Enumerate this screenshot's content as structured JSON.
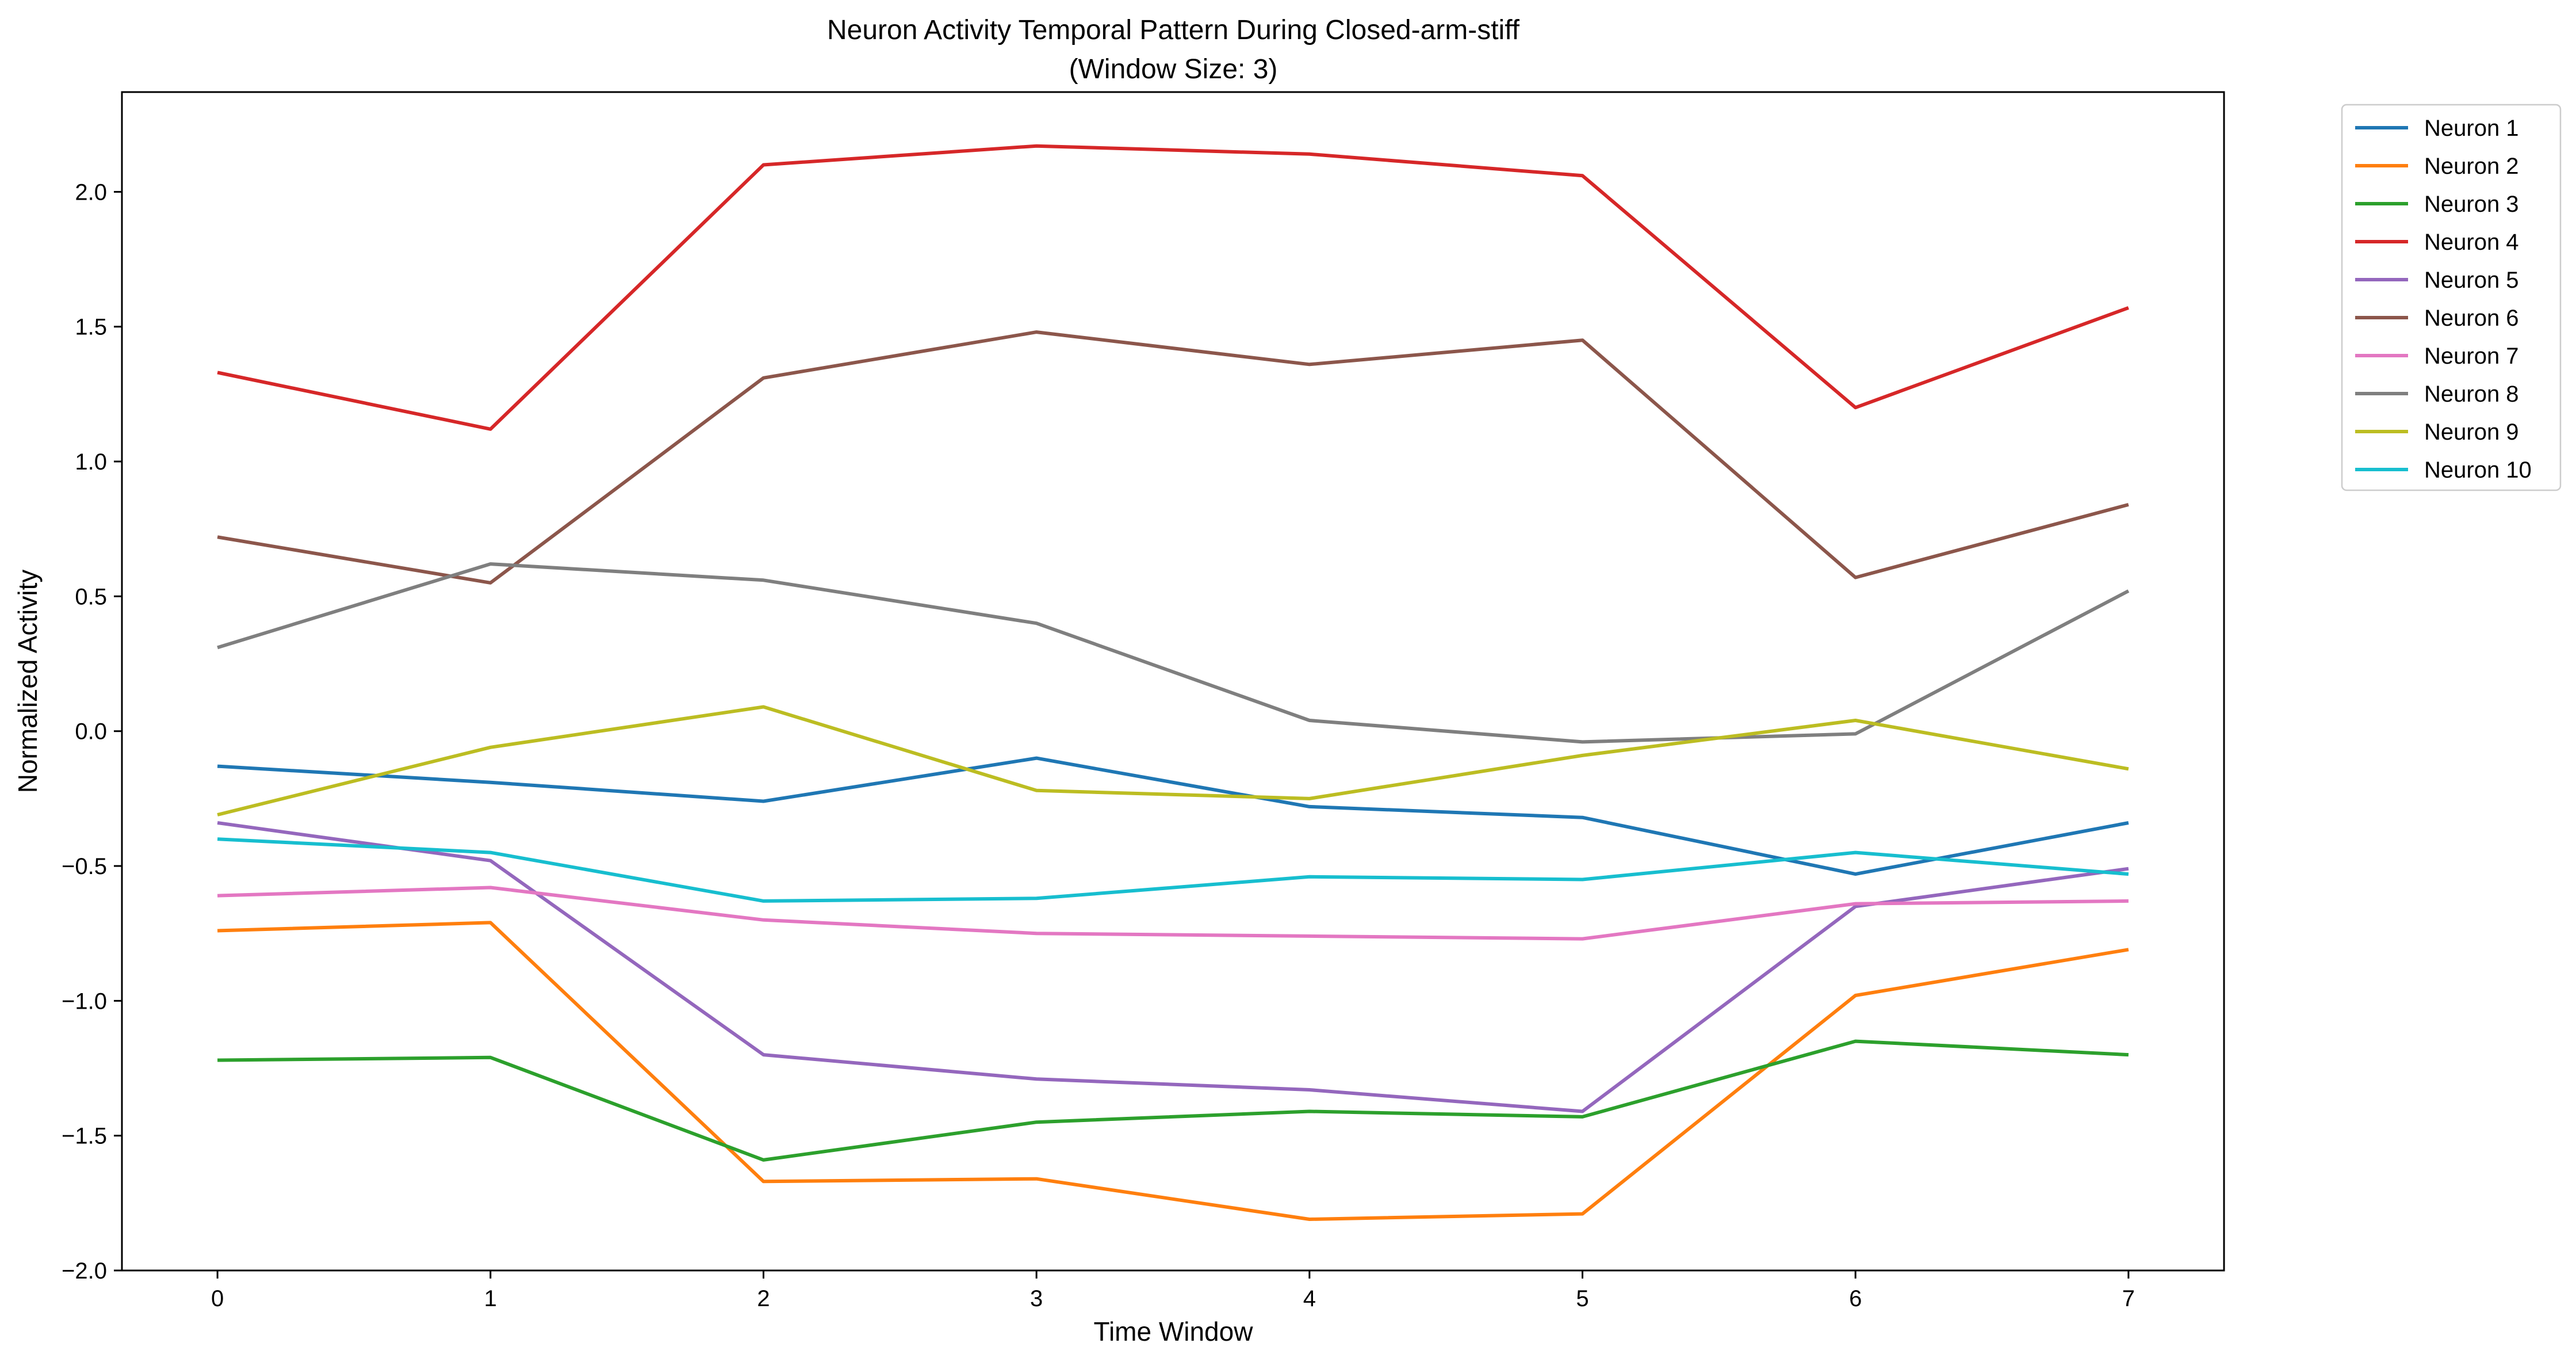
{
  "chart_data": {
    "type": "line",
    "title": "Neuron Activity Temporal Pattern During Closed-arm-stiff",
    "subtitle": "(Window Size: 3)",
    "xlabel": "Time Window",
    "ylabel": "Normalized Activity",
    "x": [
      0,
      1,
      2,
      3,
      4,
      5,
      6,
      7
    ],
    "x_ticks": [
      "0",
      "1",
      "2",
      "3",
      "4",
      "5",
      "6",
      "7"
    ],
    "xlim": [
      -0.35,
      7.35
    ],
    "y_ticks": [
      "−2.0",
      "−1.5",
      "−1.0",
      "−0.5",
      "0.0",
      "0.5",
      "1.0",
      "1.5",
      "2.0"
    ],
    "y_tick_values": [
      -2.0,
      -1.5,
      -1.0,
      -0.5,
      0.0,
      0.5,
      1.0,
      1.5,
      2.0
    ],
    "ylim": [
      -2.0,
      2.37
    ],
    "grid": false,
    "legend_position": "outside-top-right",
    "series": [
      {
        "name": "Neuron 1",
        "color": "#1f77b4",
        "values": [
          -0.13,
          -0.19,
          -0.26,
          -0.1,
          -0.28,
          -0.32,
          -0.53,
          -0.34
        ]
      },
      {
        "name": "Neuron 2",
        "color": "#ff7f0e",
        "values": [
          -0.74,
          -0.71,
          -1.67,
          -1.66,
          -1.81,
          -1.79,
          -0.98,
          -0.81
        ]
      },
      {
        "name": "Neuron 3",
        "color": "#2ca02c",
        "values": [
          -1.22,
          -1.21,
          -1.59,
          -1.45,
          -1.41,
          -1.43,
          -1.15,
          -1.2
        ]
      },
      {
        "name": "Neuron 4",
        "color": "#d62728",
        "values": [
          1.33,
          1.12,
          2.1,
          2.17,
          2.14,
          2.06,
          1.2,
          1.57
        ]
      },
      {
        "name": "Neuron 5",
        "color": "#9467bd",
        "values": [
          -0.34,
          -0.48,
          -1.2,
          -1.29,
          -1.33,
          -1.41,
          -0.65,
          -0.51
        ]
      },
      {
        "name": "Neuron 6",
        "color": "#8c564b",
        "values": [
          0.72,
          0.55,
          1.31,
          1.48,
          1.36,
          1.45,
          0.57,
          0.84
        ]
      },
      {
        "name": "Neuron 7",
        "color": "#e377c2",
        "values": [
          -0.61,
          -0.58,
          -0.7,
          -0.75,
          -0.76,
          -0.77,
          -0.64,
          -0.63
        ]
      },
      {
        "name": "Neuron 8",
        "color": "#7f7f7f",
        "values": [
          0.31,
          0.62,
          0.56,
          0.4,
          0.04,
          -0.04,
          -0.01,
          0.52
        ]
      },
      {
        "name": "Neuron 9",
        "color": "#bcbd22",
        "values": [
          -0.31,
          -0.06,
          0.09,
          -0.22,
          -0.25,
          -0.09,
          0.04,
          -0.14
        ]
      },
      {
        "name": "Neuron 10",
        "color": "#17becf",
        "values": [
          -0.4,
          -0.45,
          -0.63,
          -0.62,
          -0.54,
          -0.55,
          -0.45,
          -0.53
        ]
      }
    ]
  }
}
